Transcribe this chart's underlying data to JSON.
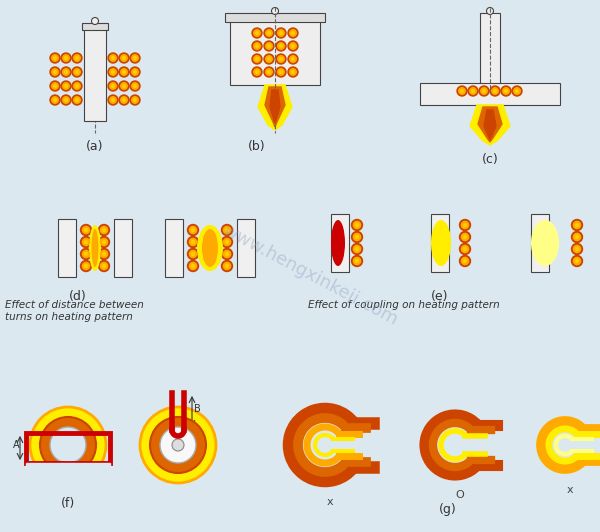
{
  "bg_color": "#dce8f0",
  "label_a": "(a)",
  "label_b": "(b)",
  "label_c": "(c)",
  "label_d": "(d)",
  "label_e": "(e)",
  "label_f": "(f)",
  "label_g": "(g)",
  "text_d": "Effect of distance between\nturns on heating pattern",
  "text_e": "Effect of coupling on heating pattern",
  "orange_dark": "#cc4400",
  "orange_mid": "#dd6600",
  "orange_light": "#ffaa00",
  "yellow": "#ffee00",
  "yellow_bright": "#ffff88",
  "red_dark": "#cc0000",
  "dark_outline": "#444444"
}
